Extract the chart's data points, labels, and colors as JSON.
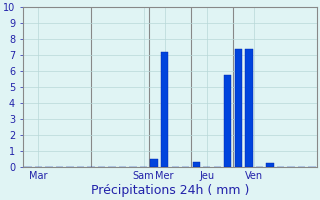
{
  "title": "Précipitations 24h ( mm )",
  "categories": 28,
  "bar_values": [
    0,
    0,
    0,
    0,
    0,
    0,
    0,
    0,
    0,
    0,
    0,
    0,
    0.5,
    7.2,
    0,
    0,
    0.3,
    0,
    0,
    5.7,
    7.35,
    7.35,
    0,
    0.2,
    0,
    0,
    0,
    0
  ],
  "bar_color": "#0044dd",
  "bar_edge_color": "#0022aa",
  "xtick_positions": [
    1,
    11,
    13,
    17,
    21.5
  ],
  "xtick_labels": [
    "Mar",
    "Sam",
    "Mer",
    "Jeu",
    "Ven"
  ],
  "vline_positions": [
    6,
    11.5,
    15.5,
    19.5
  ],
  "ylim": [
    0,
    10
  ],
  "ytick_positions": [
    0,
    1,
    2,
    3,
    4,
    5,
    6,
    7,
    8,
    9,
    10
  ],
  "background_color": "#e0f4f4",
  "grid_color": "#b8d8d8",
  "vline_color": "#888888",
  "label_color": "#2222aa",
  "xlabel_fontsize": 9,
  "ytick_fontsize": 7,
  "xtick_fontsize": 7,
  "bar_width": 0.7
}
